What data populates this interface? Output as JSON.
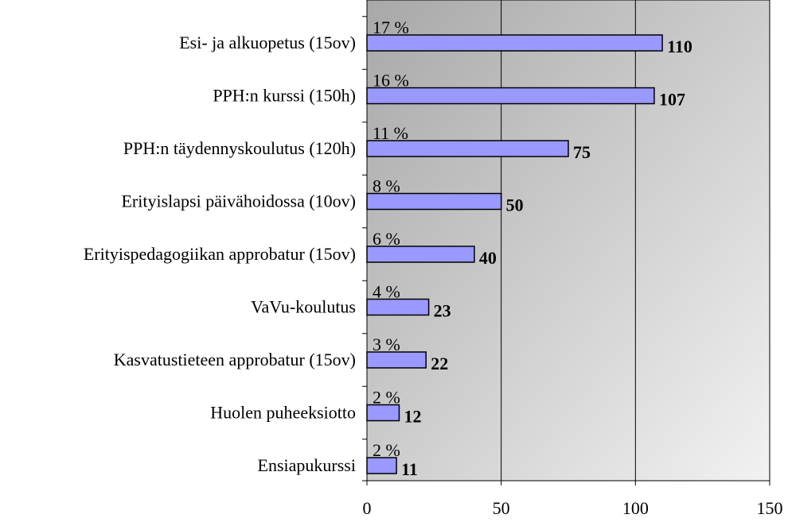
{
  "chart_data": {
    "type": "bar",
    "orientation": "horizontal",
    "categories": [
      "Esi- ja alkuopetus (15ov)",
      "PPH:n kurssi (150h)",
      "PPH:n täydennyskoulutus (120h)",
      "Erityislapsi päivähoidossa (10ov)",
      "Erityispedagogiikan approbatur (15ov)",
      "VaVu-koulutus",
      "Kasvatustieteen approbatur (15ov)",
      "Huolen puheeksiotto",
      "Ensiapukurssi"
    ],
    "values": [
      110,
      107,
      75,
      50,
      40,
      23,
      22,
      12,
      11
    ],
    "shares": [
      17,
      16,
      11,
      8,
      6,
      4,
      3,
      2,
      2
    ],
    "share_labels": [
      "17 %",
      "16 %",
      "11 %",
      "8 %",
      "6 %",
      "4 %",
      "3 %",
      "2 %",
      "2 %"
    ],
    "color": "#9999ff",
    "xlim": [
      0,
      150
    ],
    "xticks": [
      0,
      50,
      100,
      150
    ],
    "grid": true
  }
}
